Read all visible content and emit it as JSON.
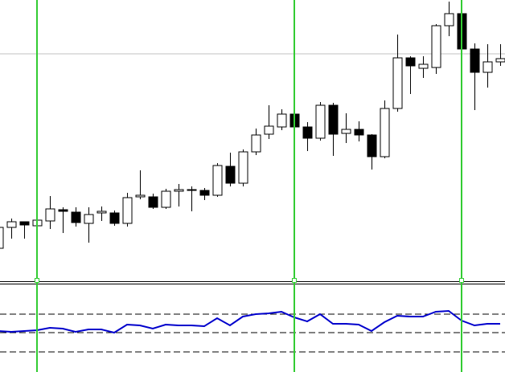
{
  "chart_data": [
    {
      "type": "candlestick",
      "up_color": "#ffffff",
      "down_color": "#000000",
      "ylim": [
        0,
        350
      ],
      "open": [
        41,
        67,
        74,
        69,
        75,
        89,
        86,
        72,
        85,
        85,
        72,
        105,
        105,
        92,
        112,
        114,
        113,
        107,
        143,
        122,
        161,
        183,
        192,
        208,
        192,
        178,
        219,
        184,
        189,
        182,
        155,
        215,
        278,
        265,
        266,
        318,
        333,
        289,
        260,
        273
      ],
      "high": [
        69,
        78,
        74,
        108,
        106,
        92,
        92,
        92,
        93,
        88,
        110,
        138,
        109,
        115,
        121,
        118,
        116,
        147,
        160,
        164,
        190,
        219,
        214,
        220,
        198,
        223,
        222,
        209,
        199,
        183,
        225,
        307,
        280,
        280,
        320,
        348,
        350,
        296,
        295,
        295
      ],
      "low": [
        39,
        53,
        53,
        60,
        65,
        60,
        68,
        48,
        75,
        69,
        68,
        102,
        90,
        90,
        93,
        87,
        101,
        105,
        118,
        118,
        157,
        177,
        188,
        187,
        162,
        175,
        156,
        172,
        174,
        139,
        153,
        211,
        233,
        253,
        258,
        305,
        262,
        213,
        241,
        268
      ],
      "close": [
        67,
        74,
        70,
        76,
        90,
        87,
        73,
        83,
        87,
        72,
        104,
        107,
        92,
        112,
        114,
        113,
        107,
        144,
        122,
        161,
        182,
        193,
        208,
        192,
        178,
        219,
        183,
        189,
        182,
        155,
        215,
        278,
        268,
        270,
        318,
        333,
        289,
        260,
        273,
        277
      ]
    },
    {
      "type": "line",
      "color": "#0000cc",
      "ylim": [
        0,
        111
      ],
      "levels": [
        72,
        49,
        25
      ],
      "values": [
        51,
        50,
        51,
        52,
        55,
        54,
        50,
        53,
        53,
        49,
        59,
        58,
        54,
        59,
        58,
        58,
        57,
        67,
        58,
        69,
        72,
        73,
        75,
        68,
        63,
        72,
        60,
        60,
        59,
        51,
        62,
        70,
        69,
        69,
        75,
        76,
        64,
        58,
        60,
        60
      ]
    }
  ]
}
